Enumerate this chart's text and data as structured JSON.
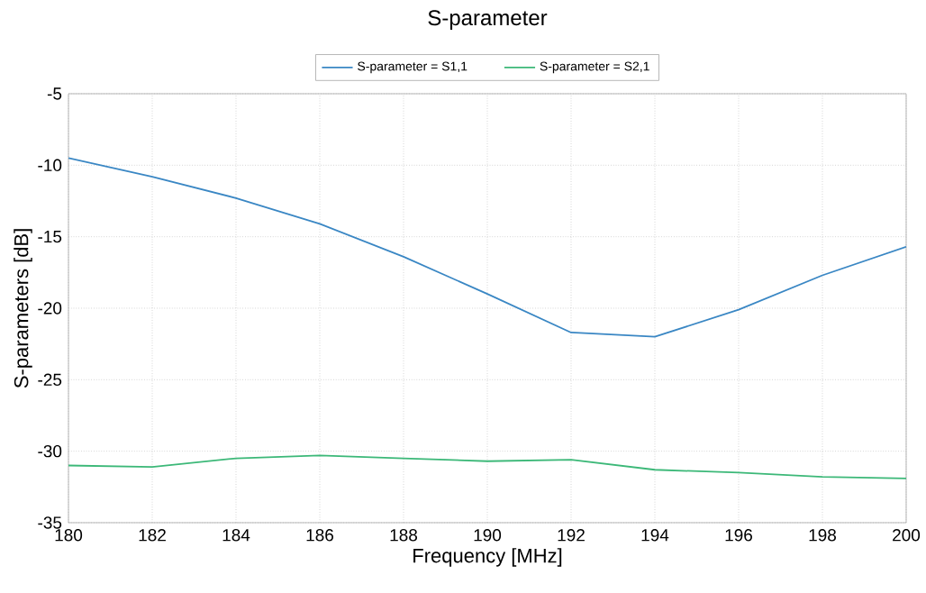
{
  "chart_data": {
    "type": "line",
    "title": "S-parameter",
    "xlabel": "Frequency [MHz]",
    "ylabel": "S-parameters [dB]",
    "x": [
      180,
      182,
      184,
      186,
      188,
      190,
      192,
      194,
      196,
      198,
      200
    ],
    "series": [
      {
        "name": "S-parameter = S1,1",
        "color": "#3a87c4",
        "values": [
          -9.5,
          -10.8,
          -12.3,
          -14.1,
          -16.4,
          -19.0,
          -21.7,
          -22.0,
          -20.1,
          -17.7,
          -15.7
        ]
      },
      {
        "name": "S-parameter = S2,1",
        "color": "#3cb878",
        "values": [
          -31.0,
          -31.1,
          -30.5,
          -30.3,
          -30.5,
          -30.7,
          -30.6,
          -31.3,
          -31.5,
          -31.8,
          -31.9
        ]
      }
    ],
    "xlim": [
      180,
      200
    ],
    "ylim": [
      -35,
      -5
    ],
    "xticks": [
      180,
      182,
      184,
      186,
      188,
      190,
      192,
      194,
      196,
      198,
      200
    ],
    "yticks": [
      -35,
      -30,
      -25,
      -20,
      -15,
      -10,
      -5
    ],
    "grid": true,
    "legend": "top",
    "marker": "none",
    "line_style": "solid"
  }
}
